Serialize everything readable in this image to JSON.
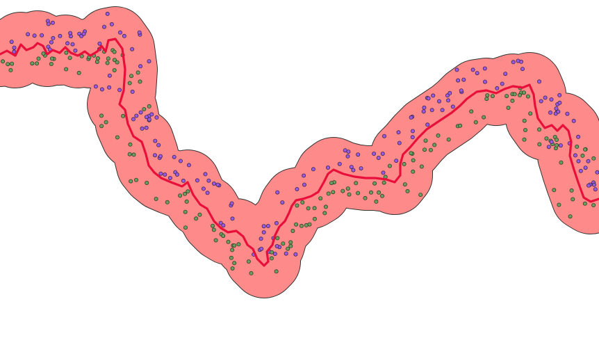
{
  "map": {
    "layers": [
      {
        "name": "buffer",
        "fill": "#ff8a8a",
        "stroke": "#333333"
      },
      {
        "name": "river-line",
        "stroke": "#e8103a"
      },
      {
        "name": "points-north-bank",
        "fill": "#9b59e6",
        "stroke": "#3a2a4a"
      },
      {
        "name": "points-south-bank",
        "fill": "#6b9e5e",
        "stroke": "#2f3f2a"
      }
    ]
  }
}
